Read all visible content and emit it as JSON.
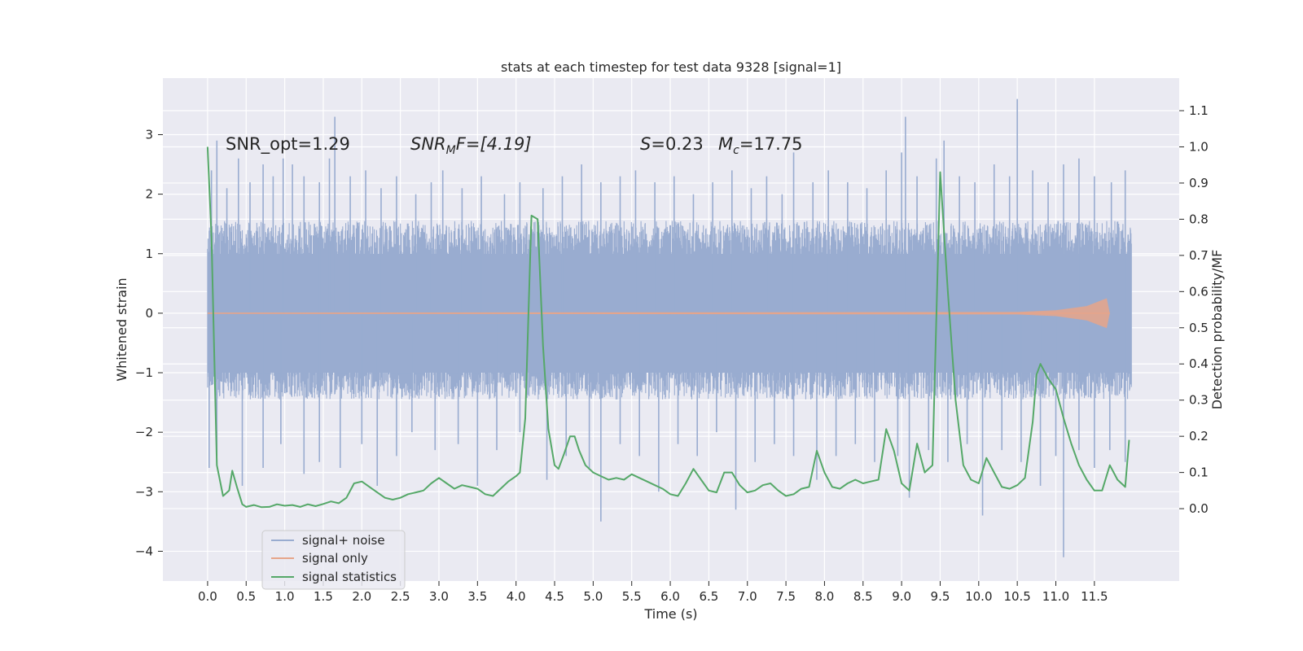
{
  "chart_data": {
    "type": "line",
    "title": "stats at each timestep for test data 9328 [signal=1]",
    "xlabel": "Time (s)",
    "ylabel_left": "Whitened strain",
    "ylabel_right": "Detection probability/MF",
    "xlim": [
      -0.58,
      12.6
    ],
    "ylim_left": [
      -4.5,
      3.95
    ],
    "ylim_right": [
      -0.2,
      1.19
    ],
    "x_ticks": [
      0.0,
      0.5,
      1.0,
      1.5,
      2.0,
      2.5,
      3.0,
      3.5,
      4.0,
      4.5,
      5.0,
      5.5,
      6.0,
      6.5,
      7.0,
      7.5,
      8.0,
      8.5,
      9.0,
      9.5,
      10.0,
      10.5,
      11.0,
      11.5
    ],
    "x_tick_labels": [
      "0.0",
      "0.5",
      "1.0",
      "1.5",
      "2.0",
      "2.5",
      "3.0",
      "3.5",
      "4.0",
      "4.5",
      "5.0",
      "5.5",
      "6.0",
      "6.5",
      "7.0",
      "7.5",
      "8.0",
      "8.5",
      "9.0",
      "9.5",
      "10.0",
      "10.5",
      "11.0",
      "11.5"
    ],
    "y_left_ticks": [
      3,
      2,
      1,
      0,
      -1,
      -2,
      -3,
      -4
    ],
    "y_left_tick_labels": [
      "3",
      "2",
      "1",
      "0",
      "−1",
      "−2",
      "−3",
      "−4"
    ],
    "y_right_ticks": [
      1.1,
      1.0,
      0.9,
      0.8,
      0.7,
      0.6,
      0.5,
      0.4,
      0.3,
      0.2,
      0.1,
      0.0
    ],
    "y_right_tick_labels": [
      "1.1",
      "1.0",
      "0.9",
      "0.8",
      "0.7",
      "0.6",
      "0.5",
      "0.4",
      "0.3",
      "0.2",
      "0.1",
      "0.0"
    ],
    "annotations": {
      "snr_opt": "SNR_opt=1.29",
      "snr_mf_main": "SNR",
      "snr_mf_sub": "M",
      "snr_mf_rest": "F=[4.19]",
      "s_main": "S",
      "s_rest": "=0.23",
      "mc_main": "M",
      "mc_sub": "c",
      "mc_rest": "=17.75"
    },
    "legend": {
      "position": "lower-left",
      "entries": [
        {
          "label": "signal+ noise",
          "color": "#99acd0"
        },
        {
          "label": "signal only",
          "color": "#e6a58a"
        },
        {
          "label": "signal statistics",
          "color": "#55a868"
        }
      ]
    },
    "series": [
      {
        "name": "signal+ noise",
        "axis": "left",
        "color": "#99acd0",
        "description": "dense whitened noise band",
        "x_range": [
          0.0,
          11.98
        ],
        "band": [
          -1.45,
          1.55
        ],
        "spikes": [
          {
            "x": 0.05,
            "y": 2.4
          },
          {
            "x": 0.12,
            "y": 2.9
          },
          {
            "x": 0.25,
            "y": 2.1
          },
          {
            "x": 0.4,
            "y": 2.6
          },
          {
            "x": 0.55,
            "y": 2.2
          },
          {
            "x": 0.72,
            "y": 2.5
          },
          {
            "x": 0.85,
            "y": 2.3
          },
          {
            "x": 0.98,
            "y": 2.6
          },
          {
            "x": 1.1,
            "y": 2.5
          },
          {
            "x": 1.25,
            "y": 2.3
          },
          {
            "x": 1.45,
            "y": 2.2
          },
          {
            "x": 1.58,
            "y": 2.6
          },
          {
            "x": 1.65,
            "y": 3.3
          },
          {
            "x": 1.85,
            "y": 2.3
          },
          {
            "x": 2.05,
            "y": 2.4
          },
          {
            "x": 2.25,
            "y": 2.1
          },
          {
            "x": 2.45,
            "y": 2.3
          },
          {
            "x": 2.7,
            "y": 2.0
          },
          {
            "x": 2.9,
            "y": 2.2
          },
          {
            "x": 3.05,
            "y": 2.4
          },
          {
            "x": 3.3,
            "y": 2.1
          },
          {
            "x": 3.55,
            "y": 2.3
          },
          {
            "x": 3.85,
            "y": 2.0
          },
          {
            "x": 4.05,
            "y": 2.2
          },
          {
            "x": 4.35,
            "y": 2.1
          },
          {
            "x": 4.6,
            "y": 2.3
          },
          {
            "x": 4.85,
            "y": 2.5
          },
          {
            "x": 5.1,
            "y": 2.2
          },
          {
            "x": 5.35,
            "y": 2.3
          },
          {
            "x": 5.55,
            "y": 2.4
          },
          {
            "x": 5.8,
            "y": 2.2
          },
          {
            "x": 6.05,
            "y": 2.3
          },
          {
            "x": 6.3,
            "y": 2.0
          },
          {
            "x": 6.55,
            "y": 2.2
          },
          {
            "x": 6.8,
            "y": 2.4
          },
          {
            "x": 7.05,
            "y": 2.1
          },
          {
            "x": 7.25,
            "y": 2.3
          },
          {
            "x": 7.45,
            "y": 2.0
          },
          {
            "x": 7.6,
            "y": 2.7
          },
          {
            "x": 7.85,
            "y": 2.2
          },
          {
            "x": 8.05,
            "y": 2.4
          },
          {
            "x": 8.3,
            "y": 2.2
          },
          {
            "x": 8.55,
            "y": 2.1
          },
          {
            "x": 8.8,
            "y": 2.4
          },
          {
            "x": 9.0,
            "y": 2.7
          },
          {
            "x": 9.05,
            "y": 3.3
          },
          {
            "x": 9.2,
            "y": 2.3
          },
          {
            "x": 9.45,
            "y": 2.6
          },
          {
            "x": 9.55,
            "y": 2.9
          },
          {
            "x": 9.75,
            "y": 2.3
          },
          {
            "x": 9.95,
            "y": 2.2
          },
          {
            "x": 10.2,
            "y": 2.5
          },
          {
            "x": 10.4,
            "y": 2.3
          },
          {
            "x": 10.5,
            "y": 3.6
          },
          {
            "x": 10.7,
            "y": 2.4
          },
          {
            "x": 10.9,
            "y": 2.2
          },
          {
            "x": 11.1,
            "y": 2.5
          },
          {
            "x": 11.3,
            "y": 2.6
          },
          {
            "x": 11.5,
            "y": 2.3
          },
          {
            "x": 11.72,
            "y": 2.2
          },
          {
            "x": 11.9,
            "y": 2.4
          },
          {
            "x": 0.02,
            "y": -2.6
          },
          {
            "x": 0.12,
            "y": -2.4
          },
          {
            "x": 0.45,
            "y": -2.9
          },
          {
            "x": 0.72,
            "y": -2.6
          },
          {
            "x": 0.95,
            "y": -2.2
          },
          {
            "x": 1.25,
            "y": -2.7
          },
          {
            "x": 1.45,
            "y": -2.5
          },
          {
            "x": 1.72,
            "y": -2.6
          },
          {
            "x": 2.0,
            "y": -2.2
          },
          {
            "x": 2.2,
            "y": -2.9
          },
          {
            "x": 2.45,
            "y": -2.4
          },
          {
            "x": 2.65,
            "y": -2.0
          },
          {
            "x": 2.95,
            "y": -2.3
          },
          {
            "x": 3.25,
            "y": -2.2
          },
          {
            "x": 3.5,
            "y": -2.9
          },
          {
            "x": 3.75,
            "y": -2.3
          },
          {
            "x": 4.05,
            "y": -2.0
          },
          {
            "x": 4.4,
            "y": -2.8
          },
          {
            "x": 4.65,
            "y": -2.4
          },
          {
            "x": 4.95,
            "y": -2.6
          },
          {
            "x": 5.1,
            "y": -3.5
          },
          {
            "x": 5.35,
            "y": -2.2
          },
          {
            "x": 5.6,
            "y": -2.4
          },
          {
            "x": 5.85,
            "y": -3.0
          },
          {
            "x": 6.1,
            "y": -2.2
          },
          {
            "x": 6.35,
            "y": -2.4
          },
          {
            "x": 6.6,
            "y": -2.0
          },
          {
            "x": 6.85,
            "y": -3.3
          },
          {
            "x": 7.1,
            "y": -2.5
          },
          {
            "x": 7.35,
            "y": -2.2
          },
          {
            "x": 7.6,
            "y": -2.4
          },
          {
            "x": 7.9,
            "y": -2.8
          },
          {
            "x": 8.15,
            "y": -2.4
          },
          {
            "x": 8.4,
            "y": -2.2
          },
          {
            "x": 8.65,
            "y": -2.5
          },
          {
            "x": 8.95,
            "y": -2.4
          },
          {
            "x": 9.1,
            "y": -3.1
          },
          {
            "x": 9.35,
            "y": -2.3
          },
          {
            "x": 9.6,
            "y": -2.5
          },
          {
            "x": 9.85,
            "y": -2.2
          },
          {
            "x": 10.05,
            "y": -3.4
          },
          {
            "x": 10.3,
            "y": -2.3
          },
          {
            "x": 10.55,
            "y": -2.5
          },
          {
            "x": 10.8,
            "y": -2.9
          },
          {
            "x": 11.0,
            "y": -2.4
          },
          {
            "x": 11.1,
            "y": -4.1
          },
          {
            "x": 11.3,
            "y": -2.3
          },
          {
            "x": 11.5,
            "y": -2.6
          },
          {
            "x": 11.7,
            "y": -2.3
          },
          {
            "x": 11.9,
            "y": -2.5
          }
        ]
      },
      {
        "name": "signal only",
        "axis": "left",
        "color": "#e6a58a",
        "description": "flat near zero, chirp growing to about +/-0.25 near t=11.65",
        "envelope": [
          [
            0.0,
            0.01
          ],
          [
            10.5,
            0.02
          ],
          [
            11.0,
            0.05
          ],
          [
            11.4,
            0.12
          ],
          [
            11.6,
            0.22
          ],
          [
            11.66,
            0.25
          ],
          [
            11.7,
            0.0
          ]
        ]
      },
      {
        "name": "signal statistics",
        "axis": "right",
        "color": "#55a868",
        "x": [
          0.0,
          0.05,
          0.12,
          0.2,
          0.28,
          0.32,
          0.38,
          0.45,
          0.5,
          0.6,
          0.7,
          0.8,
          0.9,
          1.0,
          1.1,
          1.2,
          1.3,
          1.4,
          1.5,
          1.6,
          1.7,
          1.8,
          1.9,
          2.0,
          2.1,
          2.2,
          2.3,
          2.4,
          2.5,
          2.6,
          2.7,
          2.8,
          2.9,
          3.0,
          3.1,
          3.2,
          3.3,
          3.4,
          3.5,
          3.6,
          3.7,
          3.8,
          3.9,
          4.0,
          4.05,
          4.12,
          4.2,
          4.28,
          4.35,
          4.42,
          4.5,
          4.55,
          4.62,
          4.7,
          4.76,
          4.82,
          4.9,
          5.0,
          5.1,
          5.2,
          5.3,
          5.4,
          5.5,
          5.6,
          5.7,
          5.8,
          5.9,
          6.0,
          6.1,
          6.2,
          6.3,
          6.4,
          6.5,
          6.6,
          6.7,
          6.8,
          6.9,
          7.0,
          7.1,
          7.2,
          7.3,
          7.4,
          7.5,
          7.6,
          7.7,
          7.8,
          7.9,
          8.0,
          8.1,
          8.2,
          8.3,
          8.4,
          8.5,
          8.6,
          8.7,
          8.8,
          8.9,
          9.0,
          9.1,
          9.2,
          9.3,
          9.4,
          9.5,
          9.6,
          9.7,
          9.8,
          9.9,
          10.0,
          10.1,
          10.2,
          10.3,
          10.4,
          10.5,
          10.6,
          10.7,
          10.75,
          10.8,
          10.9,
          11.0,
          11.1,
          11.2,
          11.3,
          11.4,
          11.5,
          11.6,
          11.7,
          11.8,
          11.9,
          11.95
        ],
        "y": [
          1.0,
          0.75,
          0.12,
          0.035,
          0.05,
          0.105,
          0.06,
          0.012,
          0.005,
          0.01,
          0.004,
          0.005,
          0.012,
          0.008,
          0.01,
          0.005,
          0.012,
          0.007,
          0.013,
          0.02,
          0.015,
          0.03,
          0.07,
          0.075,
          0.06,
          0.045,
          0.03,
          0.025,
          0.03,
          0.04,
          0.045,
          0.05,
          0.07,
          0.085,
          0.07,
          0.055,
          0.065,
          0.06,
          0.055,
          0.04,
          0.035,
          0.055,
          0.075,
          0.09,
          0.1,
          0.25,
          0.81,
          0.8,
          0.45,
          0.22,
          0.12,
          0.11,
          0.15,
          0.2,
          0.2,
          0.16,
          0.12,
          0.1,
          0.09,
          0.08,
          0.085,
          0.08,
          0.095,
          0.085,
          0.075,
          0.065,
          0.055,
          0.04,
          0.035,
          0.07,
          0.11,
          0.08,
          0.05,
          0.045,
          0.1,
          0.1,
          0.065,
          0.045,
          0.05,
          0.065,
          0.07,
          0.05,
          0.035,
          0.04,
          0.055,
          0.06,
          0.16,
          0.1,
          0.06,
          0.055,
          0.07,
          0.08,
          0.07,
          0.075,
          0.08,
          0.22,
          0.16,
          0.07,
          0.05,
          0.18,
          0.1,
          0.12,
          0.93,
          0.6,
          0.3,
          0.12,
          0.08,
          0.07,
          0.14,
          0.1,
          0.06,
          0.055,
          0.065,
          0.085,
          0.24,
          0.37,
          0.4,
          0.36,
          0.33,
          0.25,
          0.18,
          0.12,
          0.08,
          0.05,
          0.05,
          0.12,
          0.08,
          0.06,
          0.19
        ]
      }
    ]
  }
}
